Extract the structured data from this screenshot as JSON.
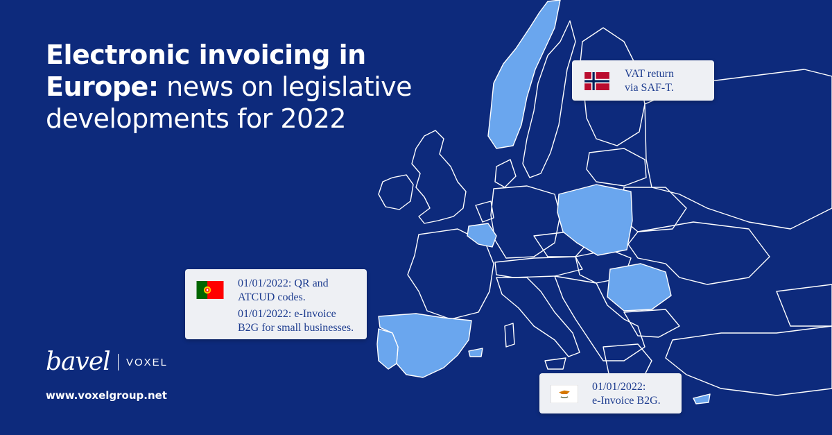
{
  "headline": {
    "bold": "Electronic invoicing in Europe:",
    "light": "news on legislative developments for 2022"
  },
  "colors": {
    "background": "#0d2a7c",
    "highlight_country": "#6aa6ee",
    "border_lines": "#ffffff",
    "card_bg": "#eef0f4",
    "card_text": "#1d3c8f"
  },
  "highlighted_countries": [
    "Norway",
    "Poland",
    "Belgium",
    "Romania",
    "Spain",
    "Portugal",
    "Cyprus"
  ],
  "callouts": {
    "norway": {
      "flag": "norway-flag",
      "lines": [
        "VAT return",
        "via SAF-T."
      ]
    },
    "portugal": {
      "flag": "portugal-flag",
      "lines": [
        "01/01/2022: QR and",
        "ATCUD codes.",
        "01/01/2022: e-Invoice",
        "B2G for small businesses."
      ]
    },
    "cyprus": {
      "flag": "cyprus-flag",
      "lines": [
        "01/01/2022:",
        "e-Invoice B2G."
      ]
    }
  },
  "brand": {
    "logo": "bavel",
    "partner": "VOXEL",
    "website": "www.voxelgroup.net"
  }
}
